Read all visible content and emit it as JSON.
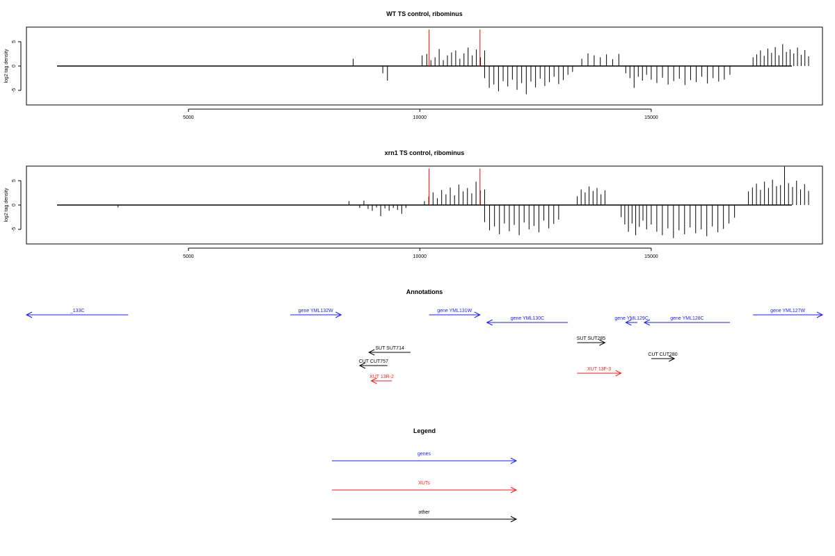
{
  "chart_data": [
    {
      "type": "bar",
      "title": "WT TS control, ribominus",
      "ylabel": "log2 tag density",
      "xlim": [
        1500,
        18700
      ],
      "ylim": [
        -8,
        8
      ],
      "xticks": [
        5000,
        10000,
        15000
      ],
      "yticks": [
        -5,
        0,
        5
      ],
      "marker_lines": [
        10200,
        11300
      ],
      "series": [
        {
          "region": [
            8560,
            8580
          ],
          "values": [
            1.5
          ]
        },
        {
          "region": [
            9200,
            9300
          ],
          "values": [
            -1.5,
            -3
          ]
        },
        {
          "region": [
            10050,
            10060
          ],
          "values": [
            2.2
          ]
        },
        {
          "region": [
            10150,
            11400
          ],
          "values": [
            2.5,
            1.2,
            1.8,
            3.5,
            1.2,
            2.2,
            2.8,
            3.2,
            1.5,
            2.6,
            3.8,
            2.2,
            3.4,
            1.8,
            3.2
          ]
        },
        {
          "region": [
            11400,
            13300
          ],
          "values": [
            -2.5,
            -4.5,
            -3.8,
            -5.2,
            -3.1,
            -4.2,
            -2.8,
            -4.9,
            -3.5,
            -5.8,
            -3.2,
            -4.4,
            -2.6,
            -4.1,
            -3.3,
            -2.2,
            -3.7,
            -2.9,
            -1.8,
            -1.2
          ]
        },
        {
          "region": [
            13500,
            14300
          ],
          "values": [
            1.5,
            2.6,
            2.2,
            1.8,
            2.4,
            1.4,
            2.5
          ]
        },
        {
          "region": [
            14450,
            14900
          ],
          "values": [
            -1.5,
            -2.5,
            -4.5,
            -2.2,
            -3.0,
            -1.8
          ]
        },
        {
          "region": [
            15000,
            16700
          ],
          "values": [
            -2.8,
            -3.5,
            -2.4,
            -3.8,
            -3.1,
            -2.6,
            -3.9,
            -2.9,
            -3.3,
            -2.2,
            -3.6,
            -2.5,
            -3.2,
            -2.8,
            -1.8
          ]
        },
        {
          "region": [
            17200,
            18400
          ],
          "values": [
            1.8,
            2.4,
            3.2,
            2.1,
            3.6,
            2.7,
            3.9,
            2.2,
            4.5,
            2.9,
            3.4,
            2.6,
            3.8,
            2.3,
            3.3,
            2.0
          ]
        }
      ]
    },
    {
      "type": "bar",
      "title": "xrn1 TS control, ribominus",
      "ylabel": "log2 tag density",
      "xlim": [
        1500,
        18700
      ],
      "ylim": [
        -8,
        8
      ],
      "xticks": [
        5000,
        10000,
        15000
      ],
      "yticks": [
        -5,
        0,
        5
      ],
      "marker_lines": [
        10200,
        11300
      ],
      "series": [
        {
          "region": [
            3480,
            3500
          ],
          "values": [
            -0.5
          ]
        },
        {
          "region": [
            8470,
            8490
          ],
          "values": [
            0.8
          ]
        },
        {
          "region": [
            8700,
            9700
          ],
          "values": [
            -0.6,
            0.9,
            -0.8,
            -1.2,
            -0.5,
            -2.3,
            -0.7,
            -1.2,
            -0.6,
            -1.0,
            -1.8,
            -0.6
          ]
        },
        {
          "region": [
            10100,
            11400
          ],
          "values": [
            0.8,
            1.8,
            2.6,
            1.4,
            3.1,
            2.2,
            3.6,
            2.0,
            4.2,
            2.8,
            3.5,
            2.4,
            4.8,
            3.0,
            3.2
          ]
        },
        {
          "region": [
            11400,
            13000
          ],
          "values": [
            -3.5,
            -5.2,
            -4.4,
            -6.0,
            -3.8,
            -5.4,
            -4.1,
            -6.2,
            -3.6,
            -5.0,
            -4.3,
            -5.6,
            -3.2,
            -4.8,
            -3.9,
            -3.0
          ]
        },
        {
          "region": [
            13400,
            14000
          ],
          "values": [
            1.8,
            3.2,
            2.6,
            3.8,
            2.9,
            3.5,
            2.2,
            3.0
          ]
        },
        {
          "region": [
            14350,
            14900
          ],
          "values": [
            -2.5,
            -4.0,
            -5.5,
            -3.8,
            -6.2,
            -4.5,
            -3.2,
            -5.0
          ]
        },
        {
          "region": [
            15000,
            16800
          ],
          "values": [
            -4.0,
            -5.5,
            -6.2,
            -4.8,
            -6.8,
            -5.2,
            -6.0,
            -4.6,
            -5.8,
            -5.0,
            -6.4,
            -4.4,
            -5.6,
            -4.9,
            -3.8,
            -2.6
          ]
        },
        {
          "region": [
            17100,
            18400
          ],
          "values": [
            2.8,
            3.6,
            4.4,
            3.1,
            4.8,
            3.5,
            5.2,
            3.9,
            4.1,
            7.9,
            4.5,
            3.7,
            5.0,
            3.2,
            4.3,
            2.9
          ]
        }
      ]
    }
  ],
  "annotations": {
    "title": "Annotations",
    "items": [
      {
        "label": "_133C",
        "start": 1500,
        "end": 3700,
        "row": 0,
        "strand": "-",
        "kind": "gene"
      },
      {
        "label": "gene YML132W",
        "start": 7200,
        "end": 8300,
        "row": 0,
        "strand": "+",
        "kind": "gene"
      },
      {
        "label": "gene YML131W",
        "start": 10200,
        "end": 11300,
        "row": 0,
        "strand": "+",
        "kind": "gene"
      },
      {
        "label": "gene YML130C",
        "start": 11450,
        "end": 13200,
        "row": 1,
        "strand": "-",
        "kind": "gene"
      },
      {
        "label": "gene YML129C",
        "start": 14450,
        "end": 14700,
        "row": 1,
        "strand": "-",
        "kind": "gene"
      },
      {
        "label": "gene YML128C",
        "start": 14850,
        "end": 16700,
        "row": 1,
        "strand": "-",
        "kind": "gene"
      },
      {
        "label": "gene YML127W",
        "start": 17200,
        "end": 18700,
        "row": 0,
        "strand": "+",
        "kind": "gene"
      },
      {
        "label": "SUT SUT714",
        "start": 8900,
        "end": 9800,
        "row": 4,
        "strand": "-",
        "kind": "other"
      },
      {
        "label": "SUT SUT285",
        "start": 13400,
        "end": 14000,
        "row": 3,
        "strand": "+",
        "kind": "other"
      },
      {
        "label": "CUT CUT757",
        "start": 8700,
        "end": 9300,
        "row": 5,
        "strand": "-",
        "kind": "other"
      },
      {
        "label": "CUT CUT280",
        "start": 15000,
        "end": 15500,
        "row": 6,
        "strand": "+",
        "kind": "other"
      },
      {
        "label": "XUT 13R-2",
        "start": 8950,
        "end": 9400,
        "row": 7,
        "strand": "-",
        "kind": "xut"
      },
      {
        "label": "XUT 13F-3",
        "start": 13400,
        "end": 14350,
        "row": 8,
        "strand": "+",
        "kind": "xut"
      }
    ]
  },
  "legend": {
    "title": "Legend",
    "entries": [
      {
        "label": "genes",
        "kind": "gene"
      },
      {
        "label": "XUTs",
        "kind": "xut"
      },
      {
        "label": "other",
        "kind": "other"
      }
    ]
  },
  "colors": {
    "gene": "#1a1aff",
    "xut": "#ff1a1a",
    "other": "#000000",
    "marker": "#ff0000",
    "axis": "#000000"
  }
}
